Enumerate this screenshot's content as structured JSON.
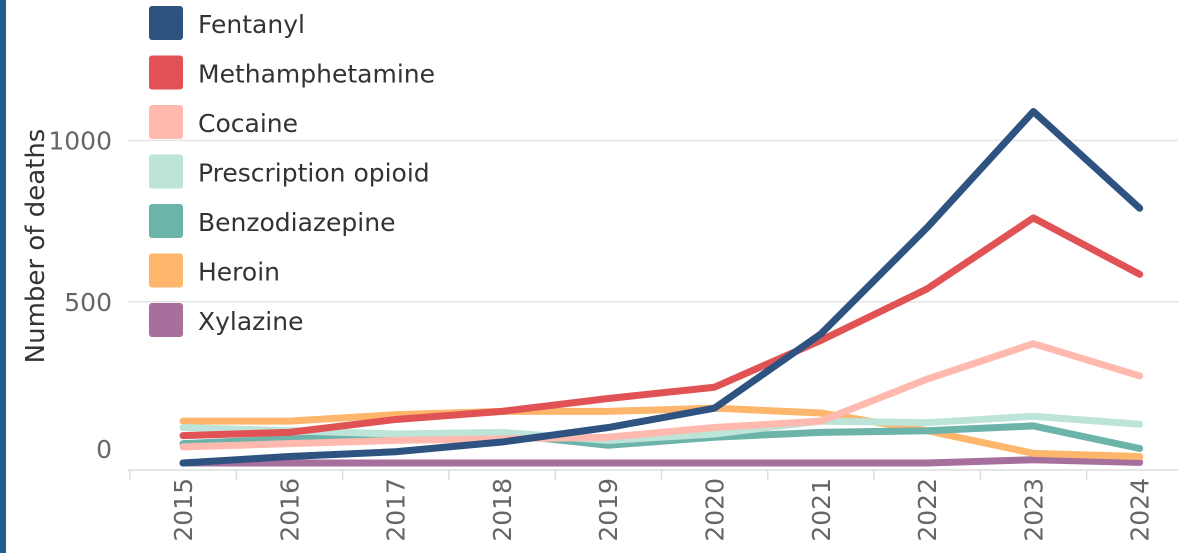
{
  "accent_color": "#1f5f8b",
  "chart_data": {
    "type": "line",
    "title": "",
    "xlabel": "",
    "ylabel": "Number of deaths",
    "x": [
      "2015",
      "2016",
      "2017",
      "2018",
      "2019",
      "2020",
      "2021",
      "2022",
      "2023",
      "2024"
    ],
    "yticks": [
      "0",
      "500",
      "1000"
    ],
    "ylim": [
      -50,
      1150
    ],
    "grid": "horizontal",
    "legend_position": "top-left",
    "series": [
      {
        "name": "Fentanyl",
        "color": "#2e5380",
        "values": [
          0,
          20,
          35,
          65,
          110,
          170,
          400,
          730,
          1090,
          790
        ]
      },
      {
        "name": "Methamphetamine",
        "color": "#e15254",
        "values": [
          85,
          95,
          135,
          160,
          200,
          235,
          380,
          540,
          760,
          585
        ]
      },
      {
        "name": "Cocaine",
        "color": "#ffb9ae",
        "values": [
          50,
          60,
          70,
          75,
          80,
          110,
          130,
          260,
          370,
          270
        ]
      },
      {
        "name": "Prescription opioid",
        "color": "#bce4d8",
        "values": [
          110,
          100,
          90,
          95,
          70,
          90,
          130,
          125,
          145,
          120
        ]
      },
      {
        "name": "Benzodiazepine",
        "color": "#6cb4aa",
        "values": [
          60,
          75,
          85,
          90,
          55,
          80,
          95,
          100,
          115,
          45
        ]
      },
      {
        "name": "Heroin",
        "color": "#fdb66c",
        "values": [
          130,
          130,
          150,
          160,
          160,
          170,
          155,
          100,
          30,
          20
        ]
      },
      {
        "name": "Xylazine",
        "color": "#a66f9c",
        "values": [
          0,
          0,
          0,
          0,
          0,
          0,
          0,
          0,
          10,
          2
        ]
      }
    ]
  }
}
